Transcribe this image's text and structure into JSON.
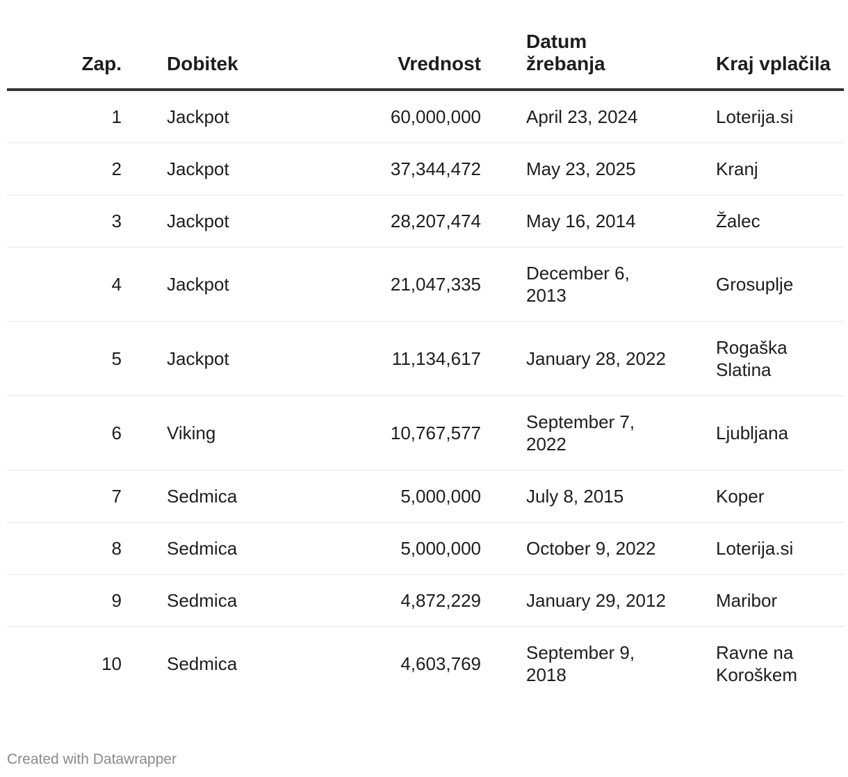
{
  "chart_data": {
    "type": "table",
    "columns": [
      "Zap.",
      "Dobitek",
      "Vrednost",
      "Datum žrebanja",
      "Kraj vplačila"
    ],
    "rows": [
      [
        "1",
        "Jackpot",
        "60,000,000",
        "April 23, 2024",
        "Loterija.si"
      ],
      [
        "2",
        "Jackpot",
        "37,344,472",
        "May 23, 2025",
        "Kranj"
      ],
      [
        "3",
        "Jackpot",
        "28,207,474",
        "May 16, 2014",
        "Žalec"
      ],
      [
        "4",
        "Jackpot",
        "21,047,335",
        "December 6, 2013",
        "Grosuplje"
      ],
      [
        "5",
        "Jackpot",
        "11,134,617",
        "January 28, 2022",
        "Rogaška Slatina"
      ],
      [
        "6",
        "Viking",
        "10,767,577",
        "September 7, 2022",
        "Ljubljana"
      ],
      [
        "7",
        "Sedmica",
        "5,000,000",
        "July 8, 2015",
        "Koper"
      ],
      [
        "8",
        "Sedmica",
        "5,000,000",
        "October 9, 2022",
        "Loterija.si"
      ],
      [
        "9",
        "Sedmica",
        "4,872,229",
        "January 29, 2012",
        "Maribor"
      ],
      [
        "10",
        "Sedmica",
        "4,603,769",
        "September 9, 2018",
        "Ravne na Koroškem"
      ]
    ]
  },
  "footer": {
    "credit": "Created with Datawrapper"
  }
}
